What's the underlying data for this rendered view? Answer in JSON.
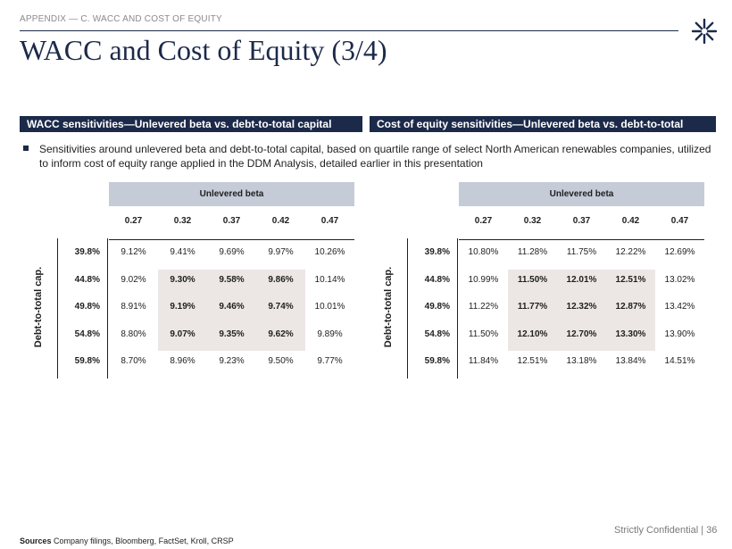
{
  "header": {
    "kicker": "APPENDIX — C. WACC AND COST OF EQUITY",
    "title": "WACC and Cost of Equity (3/4)"
  },
  "sections": {
    "left_title": "WACC sensitivities—Unlevered beta vs. debt-to-total capital",
    "right_title": "Cost of equity sensitivities—Unlevered beta vs. debt-to-total capital"
  },
  "bullet": "Sensitivities around unlevered beta and debt-to-total capital, based on quartile range of select North American renewables companies, utilized to inform cost of equity range applied in the DDM Analysis, detailed earlier in this presentation",
  "wacc_table": {
    "col_group": "Unlevered beta",
    "row_group": "Debt-to-total cap.",
    "columns": [
      "0.27",
      "0.32",
      "0.37",
      "0.42",
      "0.47"
    ],
    "rows": [
      {
        "label": "39.8%",
        "cells": [
          "9.12%",
          "9.41%",
          "9.69%",
          "9.97%",
          "10.26%"
        ]
      },
      {
        "label": "44.8%",
        "cells": [
          "9.02%",
          "9.30%",
          "9.58%",
          "9.86%",
          "10.14%"
        ]
      },
      {
        "label": "49.8%",
        "cells": [
          "8.91%",
          "9.19%",
          "9.46%",
          "9.74%",
          "10.01%"
        ]
      },
      {
        "label": "54.8%",
        "cells": [
          "8.80%",
          "9.07%",
          "9.35%",
          "9.62%",
          "9.89%"
        ]
      },
      {
        "label": "59.8%",
        "cells": [
          "8.70%",
          "8.96%",
          "9.23%",
          "9.50%",
          "9.77%"
        ]
      }
    ]
  },
  "coe_table": {
    "col_group": "Unlevered beta",
    "row_group": "Debt-to-total cap.",
    "columns": [
      "0.27",
      "0.32",
      "0.37",
      "0.42",
      "0.47"
    ],
    "rows": [
      {
        "label": "39.8%",
        "cells": [
          "10.80%",
          "11.28%",
          "11.75%",
          "12.22%",
          "12.69%"
        ]
      },
      {
        "label": "44.8%",
        "cells": [
          "10.99%",
          "11.50%",
          "12.01%",
          "12.51%",
          "13.02%"
        ]
      },
      {
        "label": "49.8%",
        "cells": [
          "11.22%",
          "11.77%",
          "12.32%",
          "12.87%",
          "13.42%"
        ]
      },
      {
        "label": "54.8%",
        "cells": [
          "11.50%",
          "12.10%",
          "12.70%",
          "13.30%",
          "13.90%"
        ]
      },
      {
        "label": "59.8%",
        "cells": [
          "11.84%",
          "12.51%",
          "13.18%",
          "13.84%",
          "14.51%"
        ]
      }
    ]
  },
  "footer": {
    "confidential": "Strictly Confidential | 36",
    "sources_label": "Sources",
    "sources_text": "Company filings, Bloomberg, FactSet, Kroll, CRSP"
  },
  "colors": {
    "navy": "#1c2a4a",
    "band": "#c6cbd8",
    "highlight": "#ece7e5"
  },
  "icons": {
    "logo": "starburst-logo-icon"
  }
}
